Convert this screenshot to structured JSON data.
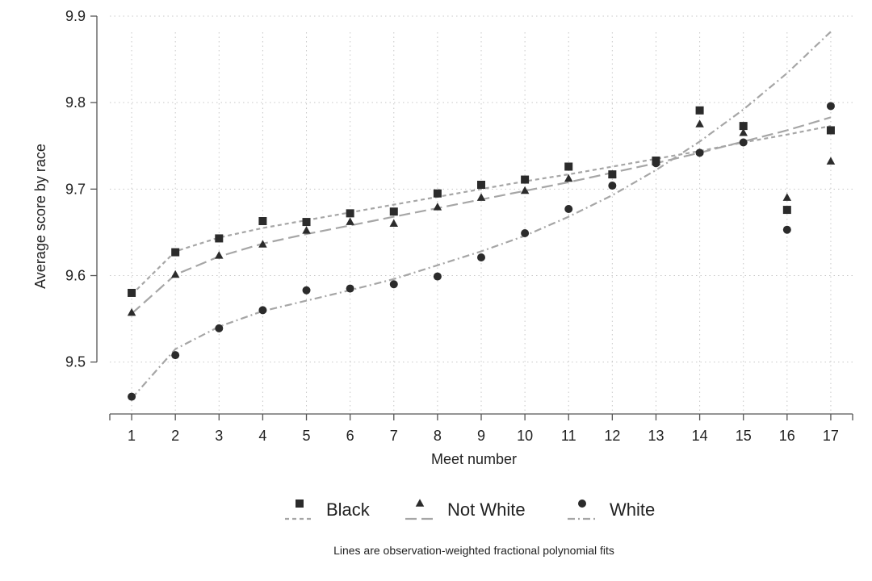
{
  "chart_data": {
    "type": "scatter",
    "xlabel": "Meet number",
    "ylabel": "Average score by race",
    "xlim": [
      0.5,
      17.5
    ],
    "ylim": [
      9.44,
      9.9
    ],
    "x_ticks": [
      1,
      2,
      3,
      4,
      5,
      6,
      7,
      8,
      9,
      10,
      11,
      12,
      13,
      14,
      15,
      16,
      17
    ],
    "y_ticks": [
      9.5,
      9.6,
      9.7,
      9.8,
      9.9
    ],
    "y_tick_labels": [
      "9.5",
      "9.6",
      "9.7",
      "9.8",
      "9.9"
    ],
    "grid": true,
    "legend_position": "bottom",
    "series": [
      {
        "name": "Black",
        "marker": "square",
        "line_style": "short-dash",
        "x": [
          1,
          2,
          3,
          4,
          5,
          6,
          7,
          8,
          9,
          10,
          11,
          12,
          13,
          14,
          15,
          16,
          17
        ],
        "values": [
          9.58,
          9.627,
          9.643,
          9.663,
          9.662,
          9.672,
          9.674,
          9.695,
          9.705,
          9.711,
          9.726,
          9.717,
          9.733,
          9.791,
          9.773,
          9.676,
          9.768
        ],
        "fit": [
          9.578,
          9.628,
          9.644,
          9.655,
          9.664,
          9.673,
          9.682,
          9.691,
          9.7,
          9.709,
          9.717,
          9.726,
          9.735,
          9.744,
          9.754,
          9.763,
          9.773
        ]
      },
      {
        "name": "Not White",
        "marker": "triangle",
        "line_style": "long-dash",
        "x": [
          1,
          2,
          3,
          4,
          5,
          6,
          7,
          8,
          9,
          10,
          11,
          12,
          13,
          14,
          15,
          16,
          17
        ],
        "values": [
          9.557,
          9.601,
          9.623,
          9.636,
          9.652,
          9.662,
          9.66,
          9.679,
          9.69,
          9.698,
          9.712,
          9.717,
          9.731,
          9.775,
          9.765,
          9.69,
          9.732
        ],
        "fit": [
          9.556,
          9.601,
          9.622,
          9.637,
          9.648,
          9.658,
          9.668,
          9.678,
          9.688,
          9.698,
          9.708,
          9.719,
          9.73,
          9.742,
          9.755,
          9.768,
          9.783
        ]
      },
      {
        "name": "White",
        "marker": "circle",
        "line_style": "dash-dot",
        "x": [
          1,
          2,
          3,
          4,
          5,
          6,
          7,
          8,
          9,
          10,
          11,
          12,
          13,
          14,
          15,
          16,
          17
        ],
        "values": [
          9.46,
          9.508,
          9.539,
          9.56,
          9.583,
          9.585,
          9.59,
          9.599,
          9.621,
          9.649,
          9.677,
          9.704,
          9.73,
          9.742,
          9.754,
          9.653,
          9.796
        ],
        "fit": [
          9.458,
          9.515,
          9.541,
          9.559,
          9.571,
          9.583,
          9.596,
          9.612,
          9.628,
          9.646,
          9.668,
          9.693,
          9.722,
          9.755,
          9.792,
          9.834,
          9.882
        ]
      }
    ],
    "note": "Lines are observation-weighted fractional polynomial fits"
  },
  "colors": {
    "marker": "#2b2b2b",
    "fit_line": "#a6a6a6",
    "grid": "#c8c8c8",
    "axis": "#555555"
  }
}
